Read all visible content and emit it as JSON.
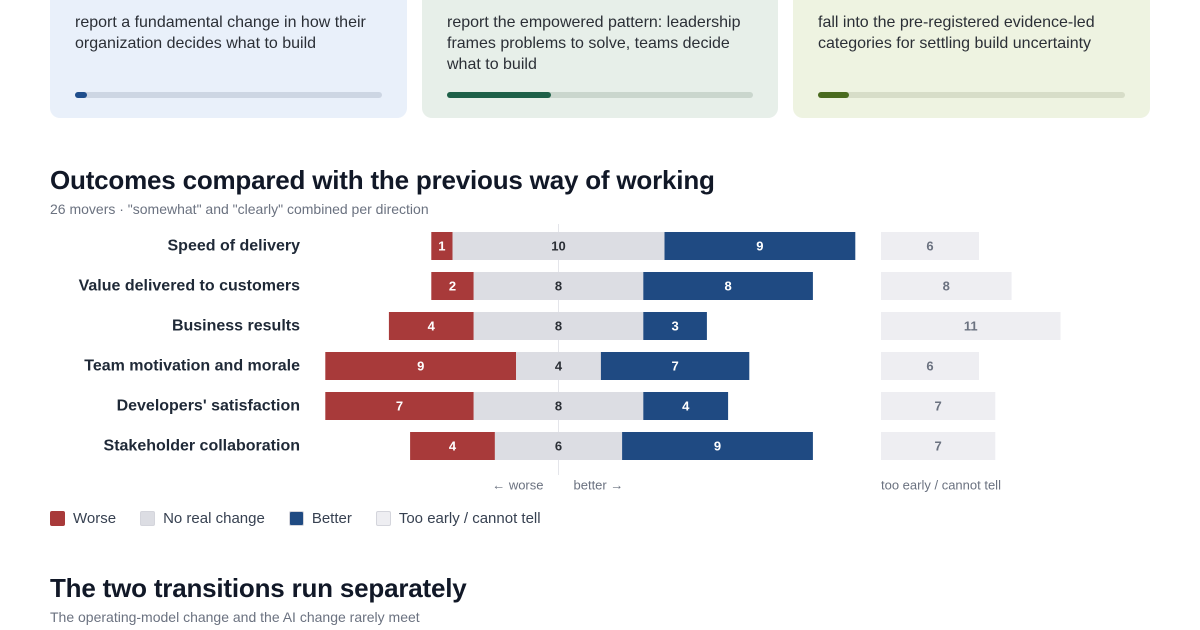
{
  "cards": [
    {
      "text": "report a fundamental change in how their organization decides what to build",
      "progress": 0.04,
      "color": "#1f4e8c"
    },
    {
      "text": "report the empowered pattern: leadership frames problems to solve, teams decide what to build",
      "progress": 0.34,
      "color": "#1e6048"
    },
    {
      "text": "fall into the pre-registered evidence-led categories for settling build uncertainty",
      "progress": 0.1,
      "color": "#4a6b1f"
    }
  ],
  "outcomes": {
    "title": "Outcomes compared with the previous way of working",
    "subtitle": "26 movers · \"somewhat\" and \"clearly\" combined per direction"
  },
  "transitions": {
    "title": "The two transitions run separately",
    "subtitle": "The operating-model change and the AI change rarely meet"
  },
  "legend": [
    {
      "label": "Worse",
      "color": "#a83a3a"
    },
    {
      "label": "No real change",
      "color": "#dcdde3"
    },
    {
      "label": "Better",
      "color": "#1f4a82"
    },
    {
      "label": "Too early / cannot tell",
      "color": "#eeeef2"
    }
  ],
  "chart_data": {
    "type": "bar",
    "subtype": "diverging-stacked",
    "categories": [
      "Speed of delivery",
      "Value delivered to customers",
      "Business results",
      "Team motivation and morale",
      "Developers' satisfaction",
      "Stakeholder collaboration"
    ],
    "series": [
      {
        "name": "Worse",
        "values": [
          1,
          2,
          4,
          9,
          7,
          4
        ],
        "color": "#a83a3a"
      },
      {
        "name": "No real change",
        "values": [
          10,
          8,
          8,
          4,
          8,
          6
        ],
        "color": "#dcdde3"
      },
      {
        "name": "Better",
        "values": [
          9,
          8,
          3,
          7,
          4,
          9
        ],
        "color": "#1f4a82"
      },
      {
        "name": "Too early / cannot tell",
        "values": [
          6,
          8,
          11,
          6,
          7,
          7
        ],
        "color": "#eeeef2"
      }
    ],
    "axis_notes": {
      "left": "← worse",
      "right": "better →",
      "side": "too early / cannot tell"
    },
    "grid": false,
    "legend_position": "bottom-left"
  }
}
